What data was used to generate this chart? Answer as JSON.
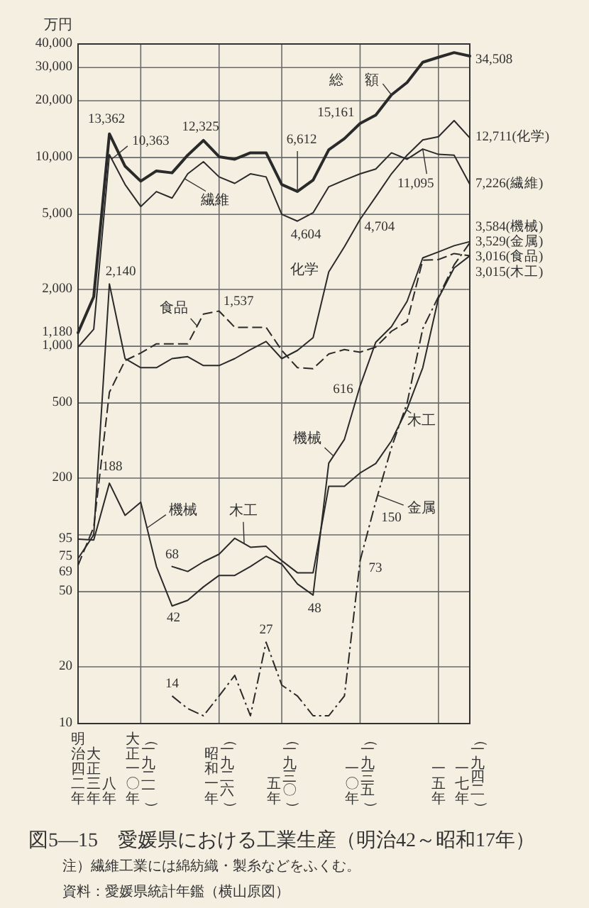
{
  "chart_data": {
    "type": "line",
    "title": "図5—15　愛媛県における工業生産（明治42～昭和17年）",
    "ylabel": "万円",
    "log": "y",
    "grid": true,
    "annotations": [
      "注）繊維工業には綿紡織・製糸などをふくむ。",
      "資料：愛媛県統計年鑑（横山原図）"
    ],
    "categories": [
      "明治四二年",
      "大正三年",
      "八年",
      null,
      "大正一〇年（一九二一）",
      null,
      null,
      null,
      null,
      "昭和一年（一九二六）",
      null,
      null,
      null,
      "五年（一九三〇）",
      null,
      null,
      null,
      null,
      "一〇年（一九三五）",
      null,
      null,
      null,
      null,
      "一五年",
      null,
      "一七年（一九四二）"
    ],
    "ylim": [
      10,
      40000
    ],
    "yticks": [
      10,
      20,
      50,
      {
        "value": 100,
        "label": null
      },
      200,
      500,
      {
        "value": 1000,
        "label": "1,000"
      },
      {
        "value": 2000,
        "label": "2,000"
      },
      {
        "value": 5000,
        "label": "5,000"
      },
      {
        "value": 10000,
        "label": "10,000"
      },
      {
        "value": 20000,
        "label": "20,000"
      },
      {
        "value": 30000,
        "label": "30,000"
      },
      {
        "value": 40000,
        "label": "40,000"
      }
    ],
    "series": [
      {
        "name": "総額",
        "color": "#2a2a2a",
        "line_style": "solid",
        "values": [
          1180,
          1830,
          13362,
          9000,
          7500,
          8500,
          8300,
          10300,
          12325,
          10100,
          9800,
          10600,
          10600,
          7200,
          6612,
          7600,
          11000,
          12600,
          15161,
          16800,
          21500,
          25000,
          32000,
          34000,
          36000,
          34508
        ],
        "value_labels": [
          "1,180",
          null,
          "13,362",
          null,
          null,
          null,
          null,
          null,
          "12,325",
          null,
          null,
          null,
          null,
          null,
          "6,612",
          null,
          null,
          null,
          "15,161",
          null,
          null,
          null,
          null,
          null,
          null,
          "34,508"
        ]
      },
      {
        "name": "繊維",
        "color": "#2a2a2a",
        "line_style": "solid",
        "values": [
          990,
          1230,
          10363,
          7200,
          5500,
          6600,
          6100,
          8200,
          9500,
          7900,
          7300,
          8200,
          7900,
          5000,
          4604,
          5100,
          7000,
          7600,
          8200,
          8700,
          10600,
          9800,
          11095,
          10400,
          10300,
          7226
        ],
        "value_labels": [
          null,
          null,
          "10,363",
          null,
          null,
          null,
          null,
          null,
          null,
          null,
          null,
          null,
          null,
          null,
          "4,604",
          null,
          null,
          null,
          null,
          null,
          null,
          null,
          "11,095",
          null,
          null,
          "7,226(繊維)"
        ]
      },
      {
        "name": "化学",
        "color": "#2a2a2a",
        "line_style": "solid",
        "values": [
          75,
          100,
          2140,
          860,
          770,
          770,
          860,
          880,
          790,
          790,
          860,
          960,
          1060,
          860,
          950,
          1110,
          2480,
          3370,
          4704,
          6200,
          8200,
          10300,
          12400,
          12900,
          15700,
          12711
        ],
        "value_labels": [
          "75",
          null,
          "2,140",
          null,
          null,
          null,
          null,
          null,
          null,
          null,
          null,
          null,
          null,
          null,
          null,
          null,
          null,
          null,
          "4,704",
          null,
          null,
          null,
          null,
          null,
          null,
          "12,711(化学)"
        ]
      },
      {
        "name": "食品",
        "color": "#2a2a2a",
        "line_style": "dashed",
        "values": [
          69,
          110,
          570,
          840,
          920,
          1030,
          1030,
          1030,
          1480,
          1537,
          1260,
          1260,
          1260,
          950,
          770,
          760,
          910,
          960,
          930,
          990,
          1200,
          1350,
          2860,
          2880,
          3100,
          3016
        ],
        "value_labels": [
          "69",
          null,
          null,
          null,
          null,
          null,
          null,
          null,
          null,
          "1,537",
          null,
          null,
          null,
          null,
          null,
          null,
          null,
          null,
          null,
          null,
          null,
          null,
          null,
          null,
          null,
          "3,016(食品)"
        ]
      },
      {
        "name": "機械",
        "color": "#2a2a2a",
        "line_style": "solid",
        "values": [
          95,
          94,
          188,
          127,
          149,
          68,
          42,
          45,
          53,
          61,
          61,
          68,
          77,
          70,
          55,
          48,
          240,
          321,
          616,
          1050,
          1270,
          1730,
          2940,
          3160,
          3410,
          3584
        ],
        "value_labels": [
          "95",
          null,
          "188",
          null,
          null,
          null,
          "42",
          null,
          null,
          null,
          null,
          null,
          null,
          null,
          null,
          "48",
          null,
          null,
          "616",
          null,
          null,
          null,
          null,
          null,
          null,
          "3,584(機械)"
        ]
      },
      {
        "name": "金属",
        "color": "#2a2a2a",
        "line_style": "dashdot",
        "values": [
          null,
          null,
          null,
          null,
          null,
          null,
          14,
          12,
          11,
          14,
          18,
          11,
          27,
          16,
          14,
          11,
          11,
          14,
          73,
          150,
          290,
          500,
          1240,
          1830,
          2700,
          3529
        ],
        "value_labels": [
          null,
          null,
          null,
          null,
          null,
          null,
          "14",
          null,
          null,
          null,
          null,
          null,
          "27",
          null,
          null,
          null,
          null,
          null,
          "73",
          "150",
          null,
          null,
          null,
          null,
          null,
          "3,529(金属)"
        ]
      },
      {
        "name": "木工",
        "color": "#2a2a2a",
        "line_style": "solid",
        "values": [
          null,
          null,
          null,
          null,
          null,
          null,
          68,
          64,
          72,
          79,
          96,
          86,
          87,
          73,
          63,
          63,
          181,
          181,
          213,
          239,
          315,
          466,
          770,
          1800,
          2600,
          3015
        ],
        "value_labels": [
          null,
          null,
          null,
          null,
          null,
          null,
          "68",
          null,
          null,
          null,
          null,
          null,
          null,
          null,
          null,
          null,
          null,
          null,
          null,
          null,
          null,
          null,
          null,
          null,
          null,
          "3,015(木工)"
        ]
      }
    ]
  }
}
